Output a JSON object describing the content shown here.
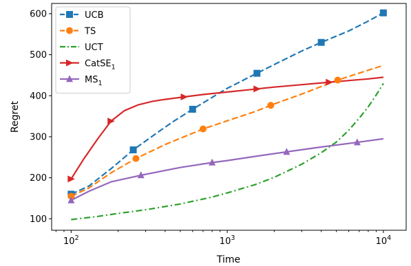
{
  "chart_data": {
    "type": "line",
    "xscale": "log",
    "xlabel": "Time",
    "ylabel": "Regret",
    "xlim": [
      75,
      14000
    ],
    "ylim": [
      72,
      625
    ],
    "xticks": [
      {
        "value": 100,
        "base": "10",
        "exp": "2"
      },
      {
        "value": 1000,
        "base": "10",
        "exp": "3"
      },
      {
        "value": 10000,
        "base": "10",
        "exp": "4"
      }
    ],
    "yticks": [
      100,
      200,
      300,
      400,
      500,
      600
    ],
    "legend": {
      "position": "top-left"
    },
    "series": [
      {
        "name": "UCB",
        "subscript": "",
        "color": "#1f77b4",
        "linestyle": "dashed",
        "marker": "square",
        "x": [
          100,
          130,
          180,
          250,
          350,
          450,
          600,
          800,
          1000,
          1500,
          2000,
          3000,
          4000,
          6000,
          8000,
          10000
        ],
        "y": [
          160,
          180,
          222,
          268,
          308,
          337,
          367,
          396,
          418,
          452,
          476,
          509,
          530,
          558,
          582,
          602
        ],
        "markers_x": [
          100,
          250,
          600,
          1550,
          4000,
          10000
        ]
      },
      {
        "name": "TS",
        "subscript": "",
        "color": "#ff7f0e",
        "linestyle": "dashed",
        "marker": "circle",
        "x": [
          100,
          130,
          180,
          260,
          400,
          700,
          1000,
          1500,
          2000,
          3000,
          5000,
          7000,
          10000
        ],
        "y": [
          155,
          175,
          212,
          247,
          281,
          319,
          339,
          361,
          380,
          404,
          437,
          455,
          474
        ],
        "markers_x": [
          100,
          260,
          700,
          1900,
          5100
        ]
      },
      {
        "name": "UCT",
        "subscript": "",
        "color": "#2ca02c",
        "linestyle": "dashdot",
        "marker": "none",
        "x": [
          100,
          150,
          200,
          300,
          500,
          800,
          1000,
          1500,
          2000,
          3000,
          4000,
          5000,
          6000,
          7000,
          8000,
          9000,
          10000
        ],
        "y": [
          98,
          106,
          113,
          122,
          136,
          153,
          163,
          183,
          201,
          233,
          261,
          287,
          316,
          345,
          373,
          402,
          430
        ],
        "markers_x": []
      },
      {
        "name": "CatSE",
        "subscript": "1",
        "color": "#d62728",
        "linestyle": "solid",
        "marker": "triangle-right",
        "x": [
          100,
          120,
          150,
          180,
          220,
          270,
          330,
          400,
          550,
          700,
          1000,
          1500,
          2000,
          3000,
          4500,
          6000,
          8000,
          10000
        ],
        "y": [
          197,
          245,
          298,
          338,
          364,
          378,
          386,
          391,
          398,
          403,
          409,
          416,
          421,
          427,
          433,
          437,
          441,
          445
        ],
        "markers_x": [
          100,
          180,
          530,
          1550,
          4500
        ]
      },
      {
        "name": "MS",
        "subscript": "1",
        "color": "#9467bd",
        "linestyle": "solid",
        "marker": "triangle-up",
        "x": [
          100,
          130,
          180,
          280,
          500,
          800,
          1000,
          1500,
          2500,
          4000,
          7000,
          10000
        ],
        "y": [
          145,
          167,
          190,
          206,
          225,
          237,
          242,
          252,
          264,
          275,
          287,
          295
        ],
        "markers_x": [
          100,
          280,
          800,
          2400,
          6800
        ]
      }
    ]
  }
}
